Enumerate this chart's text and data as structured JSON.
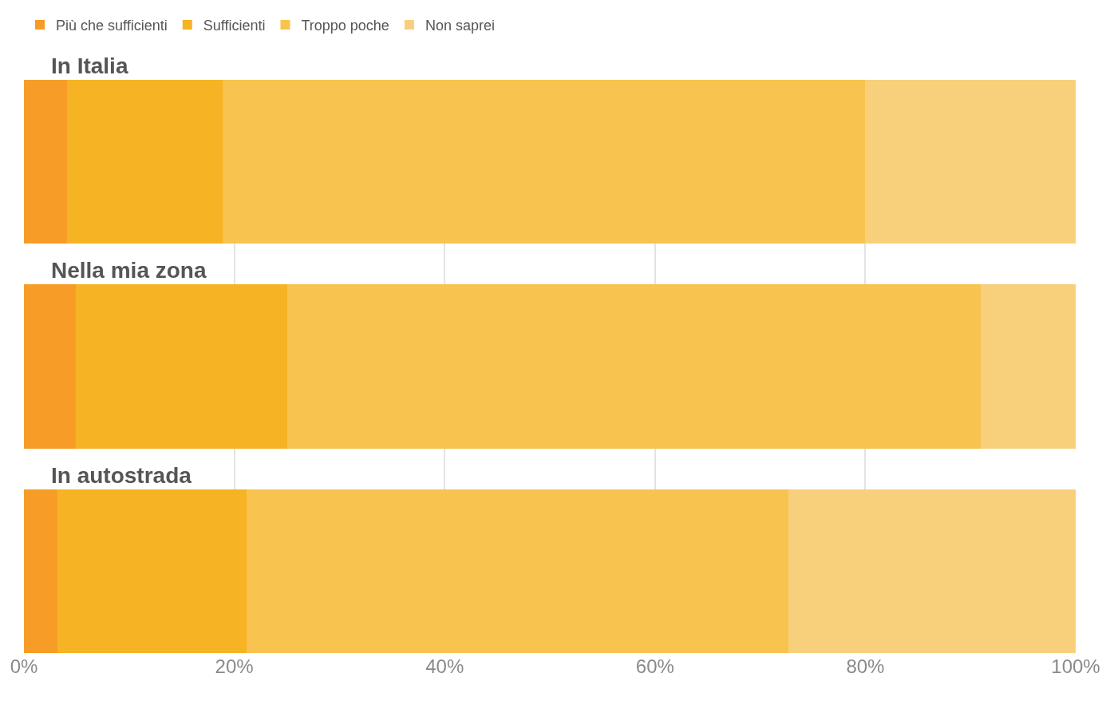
{
  "chart_data": {
    "type": "bar",
    "orientation": "horizontal",
    "stacked": true,
    "categories": [
      "In Italia",
      "Nella mia zona",
      "In autostrada"
    ],
    "series": [
      {
        "name": "Più che sufficienti",
        "color": "#f79d27",
        "values": [
          4.1,
          4.9,
          3.2
        ]
      },
      {
        "name": "Sufficienti",
        "color": "#f6b324",
        "values": [
          14.8,
          20.1,
          18.0
        ]
      },
      {
        "name": "Troppo poche",
        "color": "#f8c34f",
        "values": [
          61.1,
          66.0,
          51.5
        ]
      },
      {
        "name": "Non saprei",
        "color": "#f8d07c",
        "values": [
          20.0,
          9.0,
          27.3
        ]
      }
    ],
    "xlim": [
      0,
      100
    ],
    "xticks": [
      {
        "value": 0,
        "label": "0%"
      },
      {
        "value": 20,
        "label": "20%"
      },
      {
        "value": 40,
        "label": "40%"
      },
      {
        "value": 60,
        "label": "60%"
      },
      {
        "value": 80,
        "label": "80%"
      },
      {
        "value": 100,
        "label": "100%"
      }
    ],
    "grid": "x",
    "legend": "top left"
  }
}
